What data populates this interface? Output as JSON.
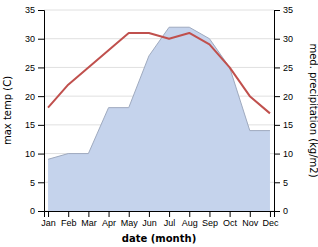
{
  "chart_data": {
    "type": "line",
    "xlabel": "date (month)",
    "ylabel": "max temp (C)",
    "y2label": "med. precipitation (kg/m2)",
    "categories": [
      "Jan",
      "Feb",
      "Mar",
      "Apr",
      "May",
      "Jun",
      "Jul",
      "Aug",
      "Sep",
      "Oct",
      "Nov",
      "Dec"
    ],
    "series": [
      {
        "type": "area",
        "axis": "y2",
        "color": "#c5d3ec",
        "values": [
          9,
          10,
          10,
          18,
          18,
          27,
          32,
          32,
          30,
          25,
          14,
          14
        ]
      },
      {
        "type": "line",
        "color": "#c0504d",
        "values": [
          18,
          22,
          25,
          28,
          31,
          31,
          30,
          31,
          29,
          25,
          20,
          17
        ]
      }
    ],
    "ylim": [
      0,
      35
    ],
    "yticks": [
      0,
      5,
      10,
      15,
      20,
      25,
      30,
      35
    ],
    "y2lim": [
      0,
      35
    ],
    "y2ticks": [
      0,
      5,
      10,
      15,
      20,
      25,
      30,
      35
    ],
    "grid": true
  }
}
